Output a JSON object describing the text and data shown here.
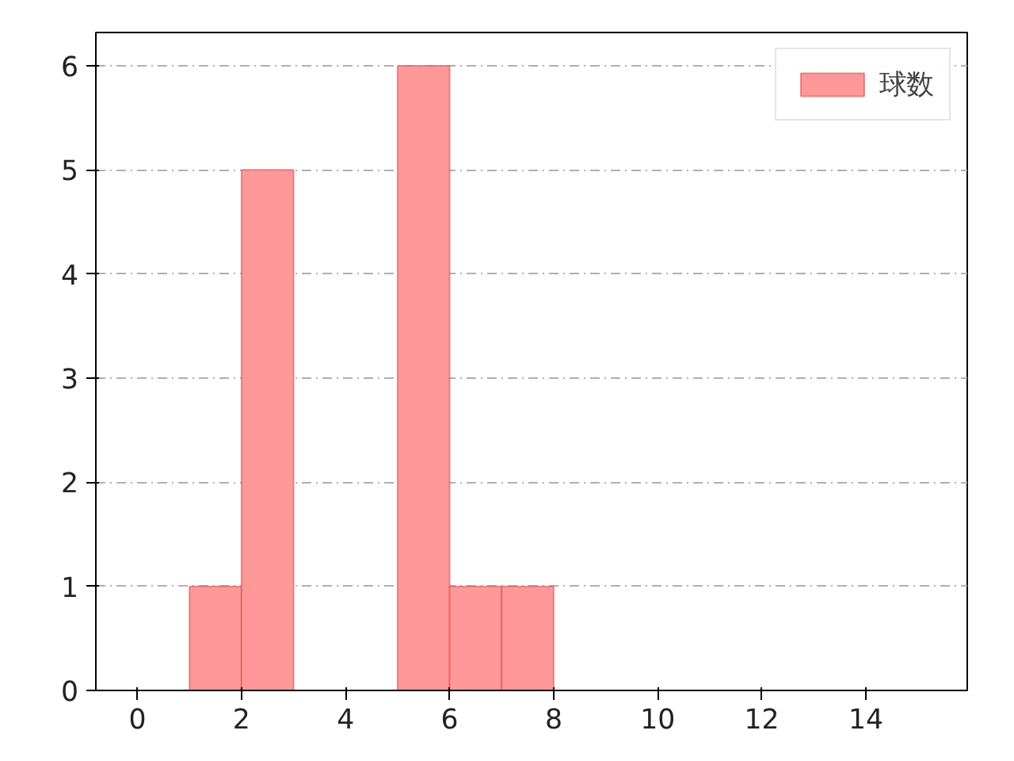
{
  "chart_data": {
    "type": "histogram",
    "bins": [
      1,
      2,
      3,
      4,
      5,
      6,
      7,
      8
    ],
    "series": [
      {
        "name": "球数",
        "color": "#ff9999",
        "values": [
          1,
          5,
          0,
          0,
          6,
          1,
          1
        ]
      }
    ],
    "xlim": [
      -0.8,
      15.95
    ],
    "xticks": [
      0,
      2,
      4,
      6,
      8,
      10,
      12,
      14
    ],
    "ylim": [
      0,
      6.32
    ],
    "yticks": [
      0,
      1,
      2,
      3,
      4,
      5,
      6
    ],
    "grid": "y",
    "legend": "top right"
  }
}
